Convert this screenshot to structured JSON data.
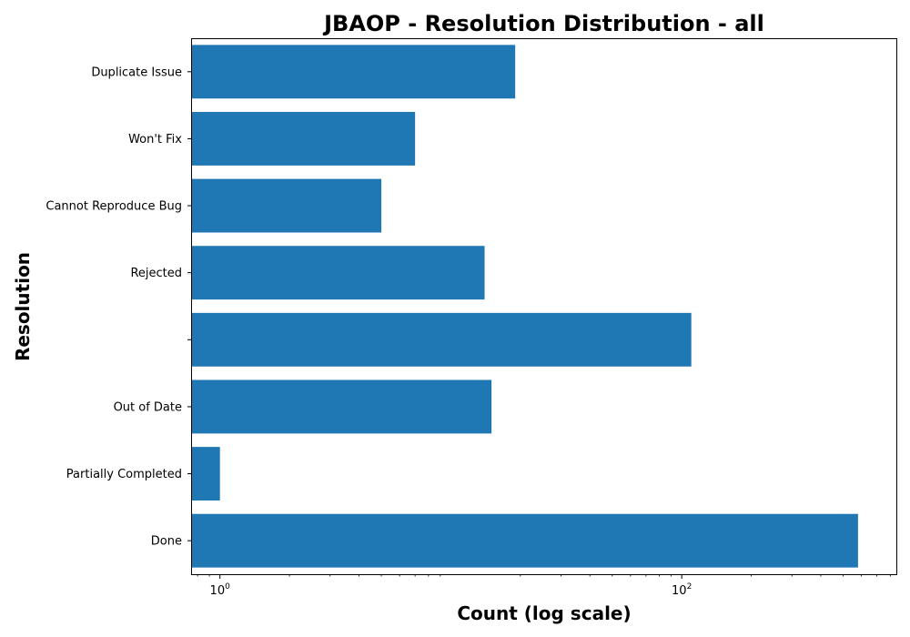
{
  "chart_data": {
    "type": "bar",
    "orientation": "horizontal",
    "title": "JBAOP - Resolution Distribution - all",
    "xlabel": "Count (log scale)",
    "ylabel": "Resolution",
    "xscale": "log",
    "xlim": [
      0.75,
      850
    ],
    "xticks": [
      {
        "value": 1,
        "base": "10",
        "exp": "0"
      },
      {
        "value": 100,
        "base": "10",
        "exp": "2"
      }
    ],
    "minor_ticks": true,
    "bar_color": "#1f77b4",
    "grid": false,
    "legend": "none",
    "categories": [
      "Duplicate Issue",
      "Won't Fix",
      "Cannot Reproduce Bug",
      "Rejected",
      "",
      "Out of Date",
      "Partially Completed",
      "Done"
    ],
    "values": [
      19,
      7,
      5,
      14,
      110,
      15,
      1,
      580
    ]
  }
}
